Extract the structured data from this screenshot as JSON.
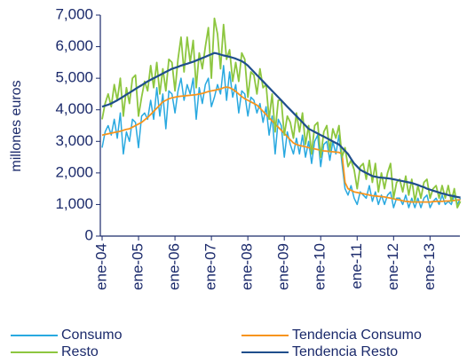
{
  "chart_data": {
    "type": "line",
    "y_label": "millones euros",
    "categories": [
      "ene-04",
      null,
      null,
      null,
      null,
      null,
      null,
      null,
      null,
      null,
      null,
      null,
      "ene-05",
      null,
      null,
      null,
      null,
      null,
      null,
      null,
      null,
      null,
      null,
      null,
      "ene-06",
      null,
      null,
      null,
      null,
      null,
      null,
      null,
      null,
      null,
      null,
      null,
      "ene-07",
      null,
      null,
      null,
      null,
      null,
      null,
      null,
      null,
      null,
      null,
      null,
      "ene-08",
      null,
      null,
      null,
      null,
      null,
      null,
      null,
      null,
      null,
      null,
      null,
      "ene-09",
      null,
      null,
      null,
      null,
      null,
      null,
      null,
      null,
      null,
      null,
      null,
      "ene-10",
      null,
      null,
      null,
      null,
      null,
      null,
      null,
      null,
      null,
      null,
      null,
      "ene-11",
      null,
      null,
      null,
      null,
      null,
      null,
      null,
      null,
      null,
      null,
      null,
      "ene-12",
      null,
      null,
      null,
      null,
      null,
      null,
      null,
      null,
      null,
      null,
      null,
      "ene-13",
      null,
      null,
      null,
      null,
      null,
      null,
      null,
      null,
      null,
      null
    ],
    "series": [
      {
        "name": "Consumo",
        "color": "#29a9e0",
        "width": 1.5,
        "values": [
          2800,
          3300,
          3500,
          3200,
          3700,
          3100,
          3900,
          2600,
          3300,
          3000,
          3700,
          3600,
          2800,
          3800,
          3900,
          3700,
          4300,
          3700,
          4700,
          3800,
          4500,
          3400,
          4600,
          4500,
          3900,
          4600,
          5000,
          4300,
          4800,
          4500,
          5000,
          3700,
          4700,
          4200,
          4800,
          5000,
          4100,
          4400,
          4800,
          4500,
          5400,
          4300,
          5200,
          4400,
          4800,
          3900,
          4600,
          4500,
          3800,
          4400,
          4300,
          3900,
          4200,
          3600,
          4100,
          3200,
          3800,
          2600,
          3700,
          3500,
          2500,
          3300,
          2900,
          2600,
          3100,
          2600,
          3200,
          2500,
          3000,
          2300,
          3000,
          3200,
          2200,
          2900,
          3000,
          2400,
          3000,
          2600,
          3200,
          2300,
          1500,
          1300,
          1600,
          1200,
          1000,
          1400,
          1300,
          1200,
          1600,
          1100,
          1400,
          1000,
          1300,
          1000,
          1300,
          1400,
          900,
          1200,
          1200,
          1000,
          1300,
          900,
          1200,
          900,
          1200,
          900,
          1200,
          1300,
          900,
          1100,
          1200,
          1000,
          1300,
          1000,
          1100,
          1000,
          1300,
          1000,
          1200
        ]
      },
      {
        "name": "Tendencia Consumo",
        "color": "#f7941d",
        "width": 1.8,
        "values": [
          3200,
          3220,
          3240,
          3260,
          3280,
          3300,
          3320,
          3350,
          3380,
          3400,
          3450,
          3500,
          3550,
          3600,
          3680,
          3760,
          3850,
          3950,
          4050,
          4150,
          4250,
          4300,
          4350,
          4380,
          4400,
          4420,
          4430,
          4440,
          4450,
          4460,
          4470,
          4480,
          4500,
          4520,
          4550,
          4580,
          4600,
          4620,
          4640,
          4660,
          4700,
          4720,
          4700,
          4650,
          4580,
          4500,
          4420,
          4350,
          4300,
          4250,
          4200,
          4150,
          4050,
          3950,
          3850,
          3750,
          3650,
          3550,
          3450,
          3350,
          3250,
          3150,
          3050,
          2950,
          2900,
          2870,
          2850,
          2830,
          2800,
          2780,
          2760,
          2740,
          2720,
          2700,
          2690,
          2680,
          2670,
          2660,
          2650,
          2600,
          1700,
          1500,
          1450,
          1400,
          1380,
          1360,
          1340,
          1320,
          1300,
          1280,
          1270,
          1260,
          1250,
          1240,
          1220,
          1200,
          1180,
          1160,
          1140,
          1120,
          1100,
          1090,
          1080,
          1080,
          1080,
          1080,
          1080,
          1080,
          1080,
          1090,
          1100,
          1100,
          1100,
          1110,
          1110,
          1120,
          1130,
          1140,
          1150
        ]
      },
      {
        "name": "Resto",
        "color": "#8dc63f",
        "width": 1.8,
        "values": [
          3700,
          4200,
          4500,
          4100,
          4800,
          4300,
          5000,
          3800,
          4700,
          4200,
          5000,
          5100,
          3800,
          4400,
          4900,
          4600,
          5400,
          4700,
          5500,
          4500,
          5300,
          4600,
          5600,
          5500,
          4600,
          5600,
          6300,
          5200,
          6300,
          5500,
          6200,
          4700,
          5800,
          5300,
          6000,
          6600,
          5000,
          6900,
          6400,
          5300,
          6700,
          5600,
          5900,
          4900,
          5500,
          4900,
          5800,
          5600,
          4400,
          5200,
          5100,
          4500,
          5300,
          4700,
          4800,
          3700,
          4500,
          3300,
          4300,
          4300,
          3200,
          3800,
          3600,
          3100,
          3900,
          3300,
          3900,
          2900,
          3500,
          2600,
          3500,
          3600,
          2500,
          3300,
          3500,
          2700,
          3400,
          3100,
          3500,
          2500,
          2800,
          2200,
          2400,
          2100,
          1500,
          2200,
          2300,
          1800,
          2400,
          1700,
          2300,
          1400,
          2000,
          1500,
          2000,
          2300,
          1200,
          1700,
          1800,
          1400,
          1900,
          1300,
          1800,
          1100,
          1600,
          1200,
          1700,
          1800,
          1200,
          1500,
          1600,
          1200,
          1600,
          1200,
          1600,
          1100,
          1500,
          900,
          1100
        ]
      },
      {
        "name": "Tendencia Resto",
        "color": "#1f4e8c",
        "width": 2.2,
        "values": [
          4100,
          4130,
          4160,
          4200,
          4250,
          4300,
          4360,
          4420,
          4480,
          4540,
          4600,
          4660,
          4720,
          4780,
          4840,
          4900,
          4950,
          5000,
          5050,
          5100,
          5150,
          5200,
          5250,
          5300,
          5330,
          5360,
          5400,
          5430,
          5460,
          5490,
          5520,
          5560,
          5600,
          5640,
          5680,
          5720,
          5760,
          5800,
          5780,
          5750,
          5720,
          5700,
          5680,
          5650,
          5620,
          5580,
          5540,
          5480,
          5400,
          5300,
          5200,
          5100,
          5000,
          4900,
          4800,
          4700,
          4600,
          4500,
          4400,
          4300,
          4200,
          4100,
          4000,
          3900,
          3800,
          3700,
          3600,
          3500,
          3400,
          3350,
          3300,
          3250,
          3200,
          3150,
          3100,
          3050,
          3000,
          2950,
          2900,
          2800,
          2700,
          2600,
          2450,
          2300,
          2200,
          2100,
          2050,
          2000,
          1950,
          1900,
          1880,
          1860,
          1850,
          1840,
          1830,
          1820,
          1800,
          1780,
          1760,
          1740,
          1720,
          1700,
          1680,
          1650,
          1620,
          1580,
          1550,
          1500,
          1470,
          1440,
          1410,
          1380,
          1350,
          1330,
          1300,
          1280,
          1260,
          1240,
          1220
        ]
      }
    ],
    "ylim": [
      0,
      7000
    ],
    "yticks": [
      0,
      {
        "value": 1000,
        "label": "1,000"
      },
      {
        "value": 2000,
        "label": "2,000"
      },
      {
        "value": 3000,
        "label": "3,000"
      },
      {
        "value": 4000,
        "label": "4,000"
      },
      {
        "value": 5000,
        "label": "5,000"
      },
      {
        "value": 6000,
        "label": "6,000"
      },
      {
        "value": 7000,
        "label": "7,000"
      }
    ],
    "grid": false,
    "legend": "bottom"
  }
}
